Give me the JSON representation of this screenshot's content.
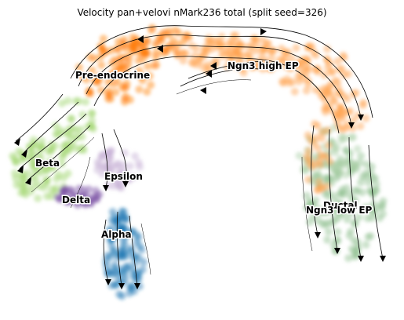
{
  "title": "Velocity pan+velovi nMark236 total (split seed=326)",
  "clusters": [
    {
      "name": "Pre-endocrine",
      "color": "#ff7f0e"
    },
    {
      "name": "Ngn3 high EP",
      "color": "#ffa04a"
    },
    {
      "name": "Beta",
      "color": "#9ed46a"
    },
    {
      "name": "Epsilon",
      "color": "#c5b0d5"
    },
    {
      "name": "Delta",
      "color": "#7b4fa3"
    },
    {
      "name": "Alpha",
      "color": "#1f77b4"
    },
    {
      "name": "Ductal",
      "color": "#8fbf8f"
    },
    {
      "name": "Ngn3 low EP",
      "color": "#a8cfa3"
    }
  ]
}
